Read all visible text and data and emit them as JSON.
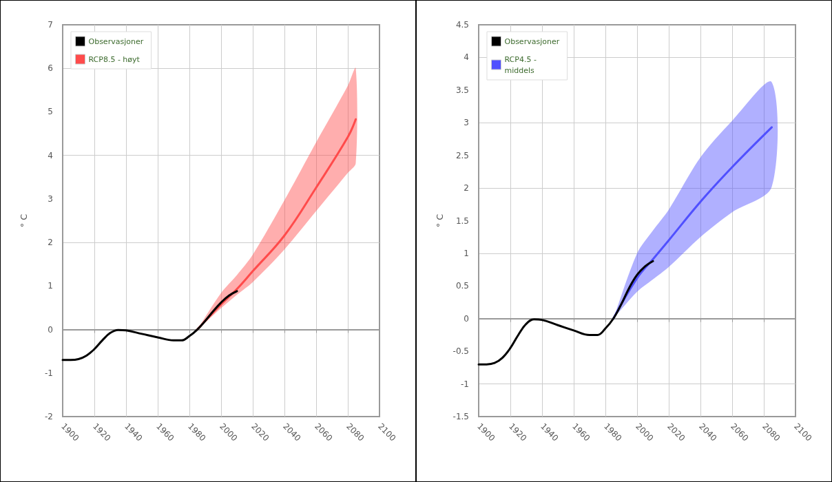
{
  "chart_data": [
    {
      "type": "line",
      "ylabel": "° C",
      "xlim": [
        1900,
        2100
      ],
      "xticks": [
        1900,
        1920,
        1940,
        1960,
        1980,
        2000,
        2020,
        2040,
        2060,
        2080,
        2100
      ],
      "ylim": [
        -2,
        7
      ],
      "yticks": [
        -2,
        -1,
        0,
        1,
        2,
        3,
        4,
        5,
        6,
        7
      ],
      "grid": true,
      "legend": "top left",
      "marker": "none",
      "line_style": "solid",
      "series": [
        {
          "name": "Observasjoner",
          "color": "#000000",
          "x": [
            1900,
            1905,
            1910,
            1915,
            1920,
            1925,
            1930,
            1935,
            1940,
            1950,
            1960,
            1970,
            1975,
            1980,
            1985,
            1990,
            1995,
            2000,
            2005,
            2010
          ],
          "values": [
            -0.7,
            -0.7,
            -0.68,
            -0.6,
            -0.45,
            -0.25,
            -0.08,
            -0.01,
            -0.02,
            -0.1,
            -0.18,
            -0.25,
            -0.25,
            -0.15,
            0.0,
            0.2,
            0.42,
            0.62,
            0.78,
            0.88
          ]
        },
        {
          "name": "RCP8.5 - høyt",
          "color": "#ff4b4b",
          "x": [
            1985,
            2000,
            2010,
            2020,
            2040,
            2060,
            2080,
            2085
          ],
          "values": [
            0.0,
            0.58,
            0.93,
            1.34,
            2.16,
            3.26,
            4.42,
            4.83
          ],
          "lower": [
            0.0,
            0.49,
            0.8,
            1.09,
            1.84,
            2.72,
            3.6,
            3.82
          ],
          "upper": [
            0.0,
            0.84,
            1.25,
            1.72,
            2.97,
            4.3,
            5.6,
            6.0
          ]
        }
      ]
    },
    {
      "type": "line",
      "ylabel": "° C",
      "xlim": [
        1900,
        2100
      ],
      "xticks": [
        1900,
        1920,
        1940,
        1960,
        1980,
        2000,
        2020,
        2040,
        2060,
        2080,
        2100
      ],
      "ylim": [
        -1.5,
        4.5
      ],
      "yticks": [
        -1.5,
        -1,
        -0.5,
        0,
        0.5,
        1,
        1.5,
        2,
        2.5,
        3,
        3.5,
        4,
        4.5
      ],
      "grid": true,
      "legend": "top left",
      "marker": "none",
      "line_style": "solid",
      "series": [
        {
          "name": "Observasjoner",
          "color": "#000000",
          "x": [
            1900,
            1905,
            1910,
            1915,
            1920,
            1925,
            1930,
            1935,
            1940,
            1950,
            1960,
            1970,
            1975,
            1980,
            1985,
            1990,
            1995,
            2000,
            2005,
            2010
          ],
          "values": [
            -0.7,
            -0.7,
            -0.68,
            -0.6,
            -0.45,
            -0.25,
            -0.08,
            -0.01,
            -0.02,
            -0.1,
            -0.18,
            -0.25,
            -0.25,
            -0.15,
            0.0,
            0.22,
            0.47,
            0.67,
            0.8,
            0.88
          ]
        },
        {
          "name": "RCP4.5 - middels",
          "color": "#5050ff",
          "x": [
            1985,
            2000,
            2010,
            2020,
            2040,
            2060,
            2085
          ],
          "values": [
            0.0,
            0.62,
            0.91,
            1.2,
            1.79,
            2.32,
            2.93
          ],
          "lower": [
            0.0,
            0.41,
            0.6,
            0.79,
            1.25,
            1.63,
            2.02
          ],
          "upper": [
            0.0,
            1.0,
            1.35,
            1.67,
            2.47,
            3.03,
            3.62
          ]
        }
      ]
    }
  ]
}
